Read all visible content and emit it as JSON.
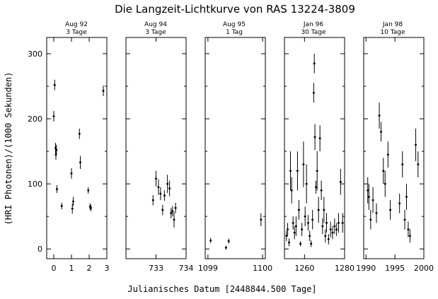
{
  "chart_data": {
    "type": "scatter",
    "title": "Die Langzeit-Lichtkurve von RAS 13224-3809",
    "ylabel": "(HRI Photonen)/(1000 Sekunden)",
    "xlabel": "Julianisches Datum [2448844.500 Tage]",
    "ylim": [
      -15,
      325
    ],
    "yticks": [
      0,
      100,
      200,
      300
    ],
    "panels": [
      {
        "label_1": "Aug 92",
        "label_2": "3 Tage",
        "xlim": [
          -0.4,
          3.0
        ],
        "xticks": [
          0,
          1,
          2,
          3
        ],
        "xticklabels": [
          "0",
          "1",
          "2",
          "3"
        ],
        "points": [
          {
            "x": 0.0,
            "y": 204,
            "err": 8
          },
          {
            "x": 0.05,
            "y": 252,
            "err": 8
          },
          {
            "x": 0.1,
            "y": 155,
            "err": 8
          },
          {
            "x": 0.12,
            "y": 145,
            "err": 8
          },
          {
            "x": 0.15,
            "y": 152,
            "err": 8
          },
          {
            "x": 0.18,
            "y": 92,
            "err": 6
          },
          {
            "x": 0.45,
            "y": 66,
            "err": 5
          },
          {
            "x": 1.0,
            "y": 116,
            "err": 8
          },
          {
            "x": 1.05,
            "y": 62,
            "err": 8
          },
          {
            "x": 1.1,
            "y": 73,
            "err": 7
          },
          {
            "x": 1.45,
            "y": 177,
            "err": 8
          },
          {
            "x": 1.5,
            "y": 133,
            "err": 10
          },
          {
            "x": 1.95,
            "y": 90,
            "err": 5
          },
          {
            "x": 2.05,
            "y": 65,
            "err": 5
          },
          {
            "x": 2.1,
            "y": 63,
            "err": 5
          },
          {
            "x": 2.8,
            "y": 243,
            "err": 8
          }
        ]
      },
      {
        "label_1": "Aug 94",
        "label_2": "3 Tage",
        "xlim": [
          732.0,
          734.0
        ],
        "xticks": [
          733,
          734
        ],
        "xticklabels": [
          "733",
          "734"
        ],
        "points": [
          {
            "x": 732.9,
            "y": 75,
            "err": 8
          },
          {
            "x": 733.0,
            "y": 108,
            "err": 12
          },
          {
            "x": 733.08,
            "y": 95,
            "err": 12
          },
          {
            "x": 733.15,
            "y": 85,
            "err": 10
          },
          {
            "x": 733.22,
            "y": 60,
            "err": 8
          },
          {
            "x": 733.28,
            "y": 82,
            "err": 8
          },
          {
            "x": 733.38,
            "y": 100,
            "err": 14
          },
          {
            "x": 733.45,
            "y": 93,
            "err": 12
          },
          {
            "x": 733.5,
            "y": 55,
            "err": 8
          },
          {
            "x": 733.55,
            "y": 58,
            "err": 8
          },
          {
            "x": 733.6,
            "y": 45,
            "err": 12
          },
          {
            "x": 733.65,
            "y": 63,
            "err": 8
          }
        ]
      },
      {
        "label_1": "Aug 95",
        "label_2": "1 Tag",
        "xlim": [
          1098.95,
          1100.05
        ],
        "xticks": [
          1099,
          1100
        ],
        "xticklabels": [
          "1099",
          "1100"
        ],
        "points": [
          {
            "x": 1099.05,
            "y": 13,
            "err": 4
          },
          {
            "x": 1099.33,
            "y": 2,
            "err": 3
          },
          {
            "x": 1099.38,
            "y": 12,
            "err": 4
          },
          {
            "x": 1099.97,
            "y": 45,
            "err": 10
          }
        ]
      },
      {
        "label_1": "Jan 96",
        "label_2": "30 Tage",
        "xlim": [
          1250,
          1280
        ],
        "xticks": [
          1260,
          1280
        ],
        "xticklabels": [
          "1260",
          "1280"
        ],
        "points": [
          {
            "x": 1251.0,
            "y": 20,
            "err": 8
          },
          {
            "x": 1251.6,
            "y": 30,
            "err": 10
          },
          {
            "x": 1252.3,
            "y": 10,
            "err": 6
          },
          {
            "x": 1253.0,
            "y": 120,
            "err": 30
          },
          {
            "x": 1253.6,
            "y": 90,
            "err": 20
          },
          {
            "x": 1254.3,
            "y": 40,
            "err": 10
          },
          {
            "x": 1255.0,
            "y": 25,
            "err": 10
          },
          {
            "x": 1255.8,
            "y": 35,
            "err": 15
          },
          {
            "x": 1256.5,
            "y": 120,
            "err": 30
          },
          {
            "x": 1257.2,
            "y": 60,
            "err": 15
          },
          {
            "x": 1258.0,
            "y": 8,
            "err": 4
          },
          {
            "x": 1258.7,
            "y": 30,
            "err": 10
          },
          {
            "x": 1259.5,
            "y": 130,
            "err": 35
          },
          {
            "x": 1260.3,
            "y": 50,
            "err": 15
          },
          {
            "x": 1261.0,
            "y": 100,
            "err": 30
          },
          {
            "x": 1261.8,
            "y": 40,
            "err": 12
          },
          {
            "x": 1262.6,
            "y": 20,
            "err": 8
          },
          {
            "x": 1263.3,
            "y": 8,
            "err": 5
          },
          {
            "x": 1264.0,
            "y": 45,
            "err": 15
          },
          {
            "x": 1264.6,
            "y": 240,
            "err": 15
          },
          {
            "x": 1264.9,
            "y": 285,
            "err": 15
          },
          {
            "x": 1265.2,
            "y": 172,
            "err": 20
          },
          {
            "x": 1265.7,
            "y": 95,
            "err": 10
          },
          {
            "x": 1266.3,
            "y": 120,
            "err": 30
          },
          {
            "x": 1267.0,
            "y": 60,
            "err": 20
          },
          {
            "x": 1267.7,
            "y": 170,
            "err": 20
          },
          {
            "x": 1268.4,
            "y": 90,
            "err": 15
          },
          {
            "x": 1269.0,
            "y": 35,
            "err": 12
          },
          {
            "x": 1269.7,
            "y": 60,
            "err": 20
          },
          {
            "x": 1270.4,
            "y": 20,
            "err": 10
          },
          {
            "x": 1271.0,
            "y": 40,
            "err": 15
          },
          {
            "x": 1272.0,
            "y": 15,
            "err": 8
          },
          {
            "x": 1273.0,
            "y": 30,
            "err": 12
          },
          {
            "x": 1274.0,
            "y": 25,
            "err": 10
          },
          {
            "x": 1275.0,
            "y": 35,
            "err": 12
          },
          {
            "x": 1276.0,
            "y": 30,
            "err": 10
          },
          {
            "x": 1277.0,
            "y": 40,
            "err": 15
          },
          {
            "x": 1278.0,
            "y": 103,
            "err": 20
          },
          {
            "x": 1279.0,
            "y": 40,
            "err": 15
          }
        ]
      },
      {
        "label_1": "Jan 98",
        "label_2": "10 Tage",
        "xlim": [
          1989.6,
          2000.0
        ],
        "xticks": [
          1990,
          1995,
          2000
        ],
        "xticklabels": [
          "1990",
          "1995",
          "2000"
        ],
        "points": [
          {
            "x": 1990.3,
            "y": 90,
            "err": 20
          },
          {
            "x": 1990.5,
            "y": 80,
            "err": 20
          },
          {
            "x": 1990.8,
            "y": 45,
            "err": 15
          },
          {
            "x": 1991.2,
            "y": 75,
            "err": 20
          },
          {
            "x": 1991.8,
            "y": 55,
            "err": 15
          },
          {
            "x": 1992.3,
            "y": 205,
            "err": 20
          },
          {
            "x": 1992.6,
            "y": 180,
            "err": 15
          },
          {
            "x": 1993.0,
            "y": 120,
            "err": 20
          },
          {
            "x": 1993.3,
            "y": 100,
            "err": 20
          },
          {
            "x": 1993.8,
            "y": 145,
            "err": 20
          },
          {
            "x": 1994.2,
            "y": 60,
            "err": 15
          },
          {
            "x": 1995.8,
            "y": 70,
            "err": 15
          },
          {
            "x": 1996.3,
            "y": 130,
            "err": 20
          },
          {
            "x": 1996.7,
            "y": 45,
            "err": 15
          },
          {
            "x": 1997.0,
            "y": 80,
            "err": 20
          },
          {
            "x": 1997.3,
            "y": 30,
            "err": 12
          },
          {
            "x": 1997.6,
            "y": 20,
            "err": 10
          },
          {
            "x": 1998.6,
            "y": 160,
            "err": 25
          },
          {
            "x": 1999.0,
            "y": 130,
            "err": 20
          }
        ]
      }
    ]
  }
}
